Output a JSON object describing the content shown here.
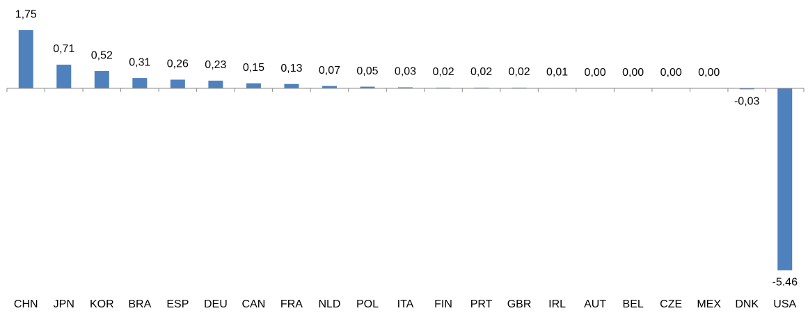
{
  "chart_data": {
    "type": "bar",
    "categories": [
      "CHN",
      "JPN",
      "KOR",
      "BRA",
      "ESP",
      "DEU",
      "CAN",
      "FRA",
      "NLD",
      "POL",
      "ITA",
      "FIN",
      "PRT",
      "GBR",
      "IRL",
      "AUT",
      "BEL",
      "CZE",
      "MEX",
      "DNK",
      "USA"
    ],
    "values": [
      1.75,
      0.71,
      0.52,
      0.31,
      0.26,
      0.23,
      0.15,
      0.13,
      0.07,
      0.05,
      0.03,
      0.02,
      0.02,
      0.02,
      0.01,
      0.0,
      0.0,
      0.0,
      0.0,
      -0.03,
      -5.46
    ],
    "value_labels": [
      "1,75",
      "0,71",
      "0,52",
      "0,31",
      "0,26",
      "0,23",
      "0,15",
      "0,13",
      "0,07",
      "0,05",
      "0,03",
      "0,02",
      "0,02",
      "0,02",
      "0,01",
      "0,00",
      "0,00",
      "0,00",
      "0,00",
      "-0,03",
      "-5.46"
    ],
    "color": "#4f81bd",
    "ylim": [
      -5.7,
      2.4
    ]
  }
}
